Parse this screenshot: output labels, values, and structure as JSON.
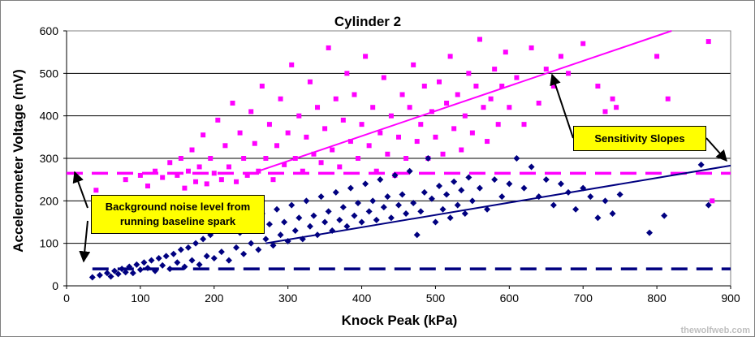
{
  "chart_data": {
    "type": "scatter",
    "title": "Cylinder 2",
    "xlabel": "Knock Peak (kPa)",
    "ylabel": "Accelerometer Voltage (mV)",
    "xlim": [
      0,
      900
    ],
    "ylim": [
      0,
      600
    ],
    "x_ticks": [
      "0",
      "100",
      "200",
      "300",
      "400",
      "500",
      "600",
      "700",
      "800",
      "900"
    ],
    "y_ticks": [
      "0",
      "100",
      "200",
      "300",
      "400",
      "500",
      "600"
    ],
    "grid": "horizontal",
    "series": [
      {
        "color": "#ff00ff",
        "marker": "square",
        "points": [
          [
            40,
            225
          ],
          [
            80,
            250
          ],
          [
            100,
            260
          ],
          [
            110,
            235
          ],
          [
            120,
            270
          ],
          [
            130,
            255
          ],
          [
            140,
            290
          ],
          [
            150,
            260
          ],
          [
            155,
            300
          ],
          [
            160,
            230
          ],
          [
            165,
            270
          ],
          [
            170,
            320
          ],
          [
            175,
            245
          ],
          [
            180,
            280
          ],
          [
            185,
            355
          ],
          [
            190,
            240
          ],
          [
            195,
            300
          ],
          [
            200,
            265
          ],
          [
            205,
            390
          ],
          [
            210,
            250
          ],
          [
            215,
            330
          ],
          [
            220,
            280
          ],
          [
            225,
            430
          ],
          [
            230,
            245
          ],
          [
            235,
            360
          ],
          [
            240,
            300
          ],
          [
            245,
            260
          ],
          [
            250,
            410
          ],
          [
            255,
            335
          ],
          [
            260,
            270
          ],
          [
            265,
            470
          ],
          [
            270,
            300
          ],
          [
            275,
            380
          ],
          [
            280,
            250
          ],
          [
            285,
            330
          ],
          [
            290,
            440
          ],
          [
            295,
            285
          ],
          [
            300,
            360
          ],
          [
            305,
            520
          ],
          [
            310,
            300
          ],
          [
            315,
            400
          ],
          [
            320,
            270
          ],
          [
            325,
            350
          ],
          [
            330,
            480
          ],
          [
            335,
            310
          ],
          [
            340,
            420
          ],
          [
            345,
            290
          ],
          [
            350,
            370
          ],
          [
            355,
            560
          ],
          [
            360,
            320
          ],
          [
            365,
            440
          ],
          [
            370,
            280
          ],
          [
            375,
            390
          ],
          [
            380,
            500
          ],
          [
            385,
            340
          ],
          [
            390,
            450
          ],
          [
            395,
            300
          ],
          [
            400,
            380
          ],
          [
            405,
            540
          ],
          [
            410,
            330
          ],
          [
            415,
            420
          ],
          [
            420,
            270
          ],
          [
            425,
            360
          ],
          [
            430,
            490
          ],
          [
            435,
            310
          ],
          [
            440,
            400
          ],
          [
            445,
            260
          ],
          [
            450,
            350
          ],
          [
            455,
            450
          ],
          [
            460,
            300
          ],
          [
            465,
            420
          ],
          [
            470,
            520
          ],
          [
            475,
            340
          ],
          [
            480,
            380
          ],
          [
            485,
            470
          ],
          [
            490,
            300
          ],
          [
            495,
            410
          ],
          [
            500,
            350
          ],
          [
            505,
            480
          ],
          [
            510,
            310
          ],
          [
            515,
            430
          ],
          [
            520,
            540
          ],
          [
            525,
            370
          ],
          [
            530,
            450
          ],
          [
            535,
            320
          ],
          [
            540,
            400
          ],
          [
            545,
            500
          ],
          [
            550,
            360
          ],
          [
            555,
            470
          ],
          [
            560,
            580
          ],
          [
            565,
            420
          ],
          [
            570,
            340
          ],
          [
            575,
            440
          ],
          [
            580,
            510
          ],
          [
            585,
            380
          ],
          [
            590,
            470
          ],
          [
            595,
            550
          ],
          [
            600,
            420
          ],
          [
            610,
            490
          ],
          [
            620,
            380
          ],
          [
            630,
            560
          ],
          [
            640,
            430
          ],
          [
            650,
            510
          ],
          [
            660,
            470
          ],
          [
            670,
            540
          ],
          [
            680,
            500
          ],
          [
            690,
            360
          ],
          [
            700,
            570
          ],
          [
            710,
            330
          ],
          [
            720,
            470
          ],
          [
            730,
            410
          ],
          [
            740,
            440
          ],
          [
            745,
            420
          ],
          [
            800,
            540
          ],
          [
            815,
            440
          ],
          [
            870,
            575
          ],
          [
            875,
            200
          ]
        ]
      },
      {
        "color": "#000080",
        "marker": "diamond",
        "points": [
          [
            35,
            20
          ],
          [
            45,
            25
          ],
          [
            55,
            30
          ],
          [
            60,
            22
          ],
          [
            65,
            35
          ],
          [
            70,
            28
          ],
          [
            75,
            40
          ],
          [
            80,
            32
          ],
          [
            85,
            45
          ],
          [
            90,
            30
          ],
          [
            95,
            50
          ],
          [
            100,
            38
          ],
          [
            105,
            55
          ],
          [
            110,
            42
          ],
          [
            115,
            60
          ],
          [
            120,
            35
          ],
          [
            125,
            65
          ],
          [
            130,
            48
          ],
          [
            135,
            70
          ],
          [
            140,
            40
          ],
          [
            145,
            75
          ],
          [
            150,
            55
          ],
          [
            155,
            85
          ],
          [
            160,
            45
          ],
          [
            165,
            90
          ],
          [
            170,
            60
          ],
          [
            175,
            100
          ],
          [
            180,
            50
          ],
          [
            185,
            110
          ],
          [
            190,
            70
          ],
          [
            195,
            120
          ],
          [
            200,
            65
          ],
          [
            205,
            130
          ],
          [
            210,
            80
          ],
          [
            215,
            140
          ],
          [
            220,
            60
          ],
          [
            225,
            150
          ],
          [
            230,
            90
          ],
          [
            235,
            125
          ],
          [
            240,
            75
          ],
          [
            245,
            160
          ],
          [
            250,
            100
          ],
          [
            255,
            135
          ],
          [
            260,
            85
          ],
          [
            265,
            170
          ],
          [
            270,
            110
          ],
          [
            275,
            145
          ],
          [
            280,
            95
          ],
          [
            285,
            180
          ],
          [
            290,
            120
          ],
          [
            295,
            150
          ],
          [
            300,
            105
          ],
          [
            305,
            190
          ],
          [
            310,
            130
          ],
          [
            315,
            160
          ],
          [
            320,
            110
          ],
          [
            325,
            200
          ],
          [
            330,
            140
          ],
          [
            335,
            165
          ],
          [
            340,
            120
          ],
          [
            345,
            210
          ],
          [
            350,
            150
          ],
          [
            355,
            175
          ],
          [
            360,
            130
          ],
          [
            365,
            220
          ],
          [
            370,
            155
          ],
          [
            375,
            185
          ],
          [
            380,
            140
          ],
          [
            385,
            230
          ],
          [
            390,
            165
          ],
          [
            395,
            195
          ],
          [
            400,
            150
          ],
          [
            405,
            240
          ],
          [
            410,
            175
          ],
          [
            415,
            200
          ],
          [
            420,
            155
          ],
          [
            425,
            250
          ],
          [
            430,
            185
          ],
          [
            435,
            210
          ],
          [
            440,
            160
          ],
          [
            445,
            260
          ],
          [
            450,
            190
          ],
          [
            455,
            215
          ],
          [
            460,
            170
          ],
          [
            465,
            270
          ],
          [
            470,
            195
          ],
          [
            475,
            120
          ],
          [
            480,
            175
          ],
          [
            485,
            220
          ],
          [
            490,
            300
          ],
          [
            495,
            205
          ],
          [
            500,
            150
          ],
          [
            505,
            235
          ],
          [
            510,
            180
          ],
          [
            515,
            215
          ],
          [
            520,
            160
          ],
          [
            525,
            245
          ],
          [
            530,
            190
          ],
          [
            535,
            225
          ],
          [
            540,
            170
          ],
          [
            545,
            255
          ],
          [
            550,
            200
          ],
          [
            560,
            230
          ],
          [
            570,
            180
          ],
          [
            580,
            250
          ],
          [
            590,
            210
          ],
          [
            600,
            240
          ],
          [
            610,
            300
          ],
          [
            620,
            230
          ],
          [
            630,
            280
          ],
          [
            640,
            210
          ],
          [
            650,
            250
          ],
          [
            660,
            190
          ],
          [
            670,
            240
          ],
          [
            680,
            220
          ],
          [
            690,
            180
          ],
          [
            700,
            230
          ],
          [
            710,
            210
          ],
          [
            720,
            160
          ],
          [
            730,
            200
          ],
          [
            740,
            170
          ],
          [
            750,
            215
          ],
          [
            790,
            125
          ],
          [
            810,
            165
          ],
          [
            860,
            285
          ],
          [
            870,
            190
          ]
        ]
      }
    ],
    "lines": [
      {
        "color": "#ff00ff",
        "style": "solid",
        "from": [
          260,
          270
        ],
        "to": [
          820,
          600
        ]
      },
      {
        "color": "#000080",
        "style": "solid",
        "from": [
          270,
          100
        ],
        "to": [
          900,
          283
        ]
      },
      {
        "color": "#ff00ff",
        "style": "dashed",
        "from": [
          0,
          265
        ],
        "to": [
          900,
          265
        ]
      },
      {
        "color": "#000080",
        "style": "dashed",
        "from": [
          35,
          40
        ],
        "to": [
          900,
          40
        ]
      }
    ],
    "annotations": [
      {
        "text": "Background noise level from running baseline spark"
      },
      {
        "text": "Sensitivity Slopes"
      }
    ]
  },
  "callouts": {
    "noise_line1": "Background noise level from",
    "noise_line2": "running baseline spark",
    "slopes": "Sensitivity Slopes"
  },
  "watermark": "thewolfweb.com"
}
